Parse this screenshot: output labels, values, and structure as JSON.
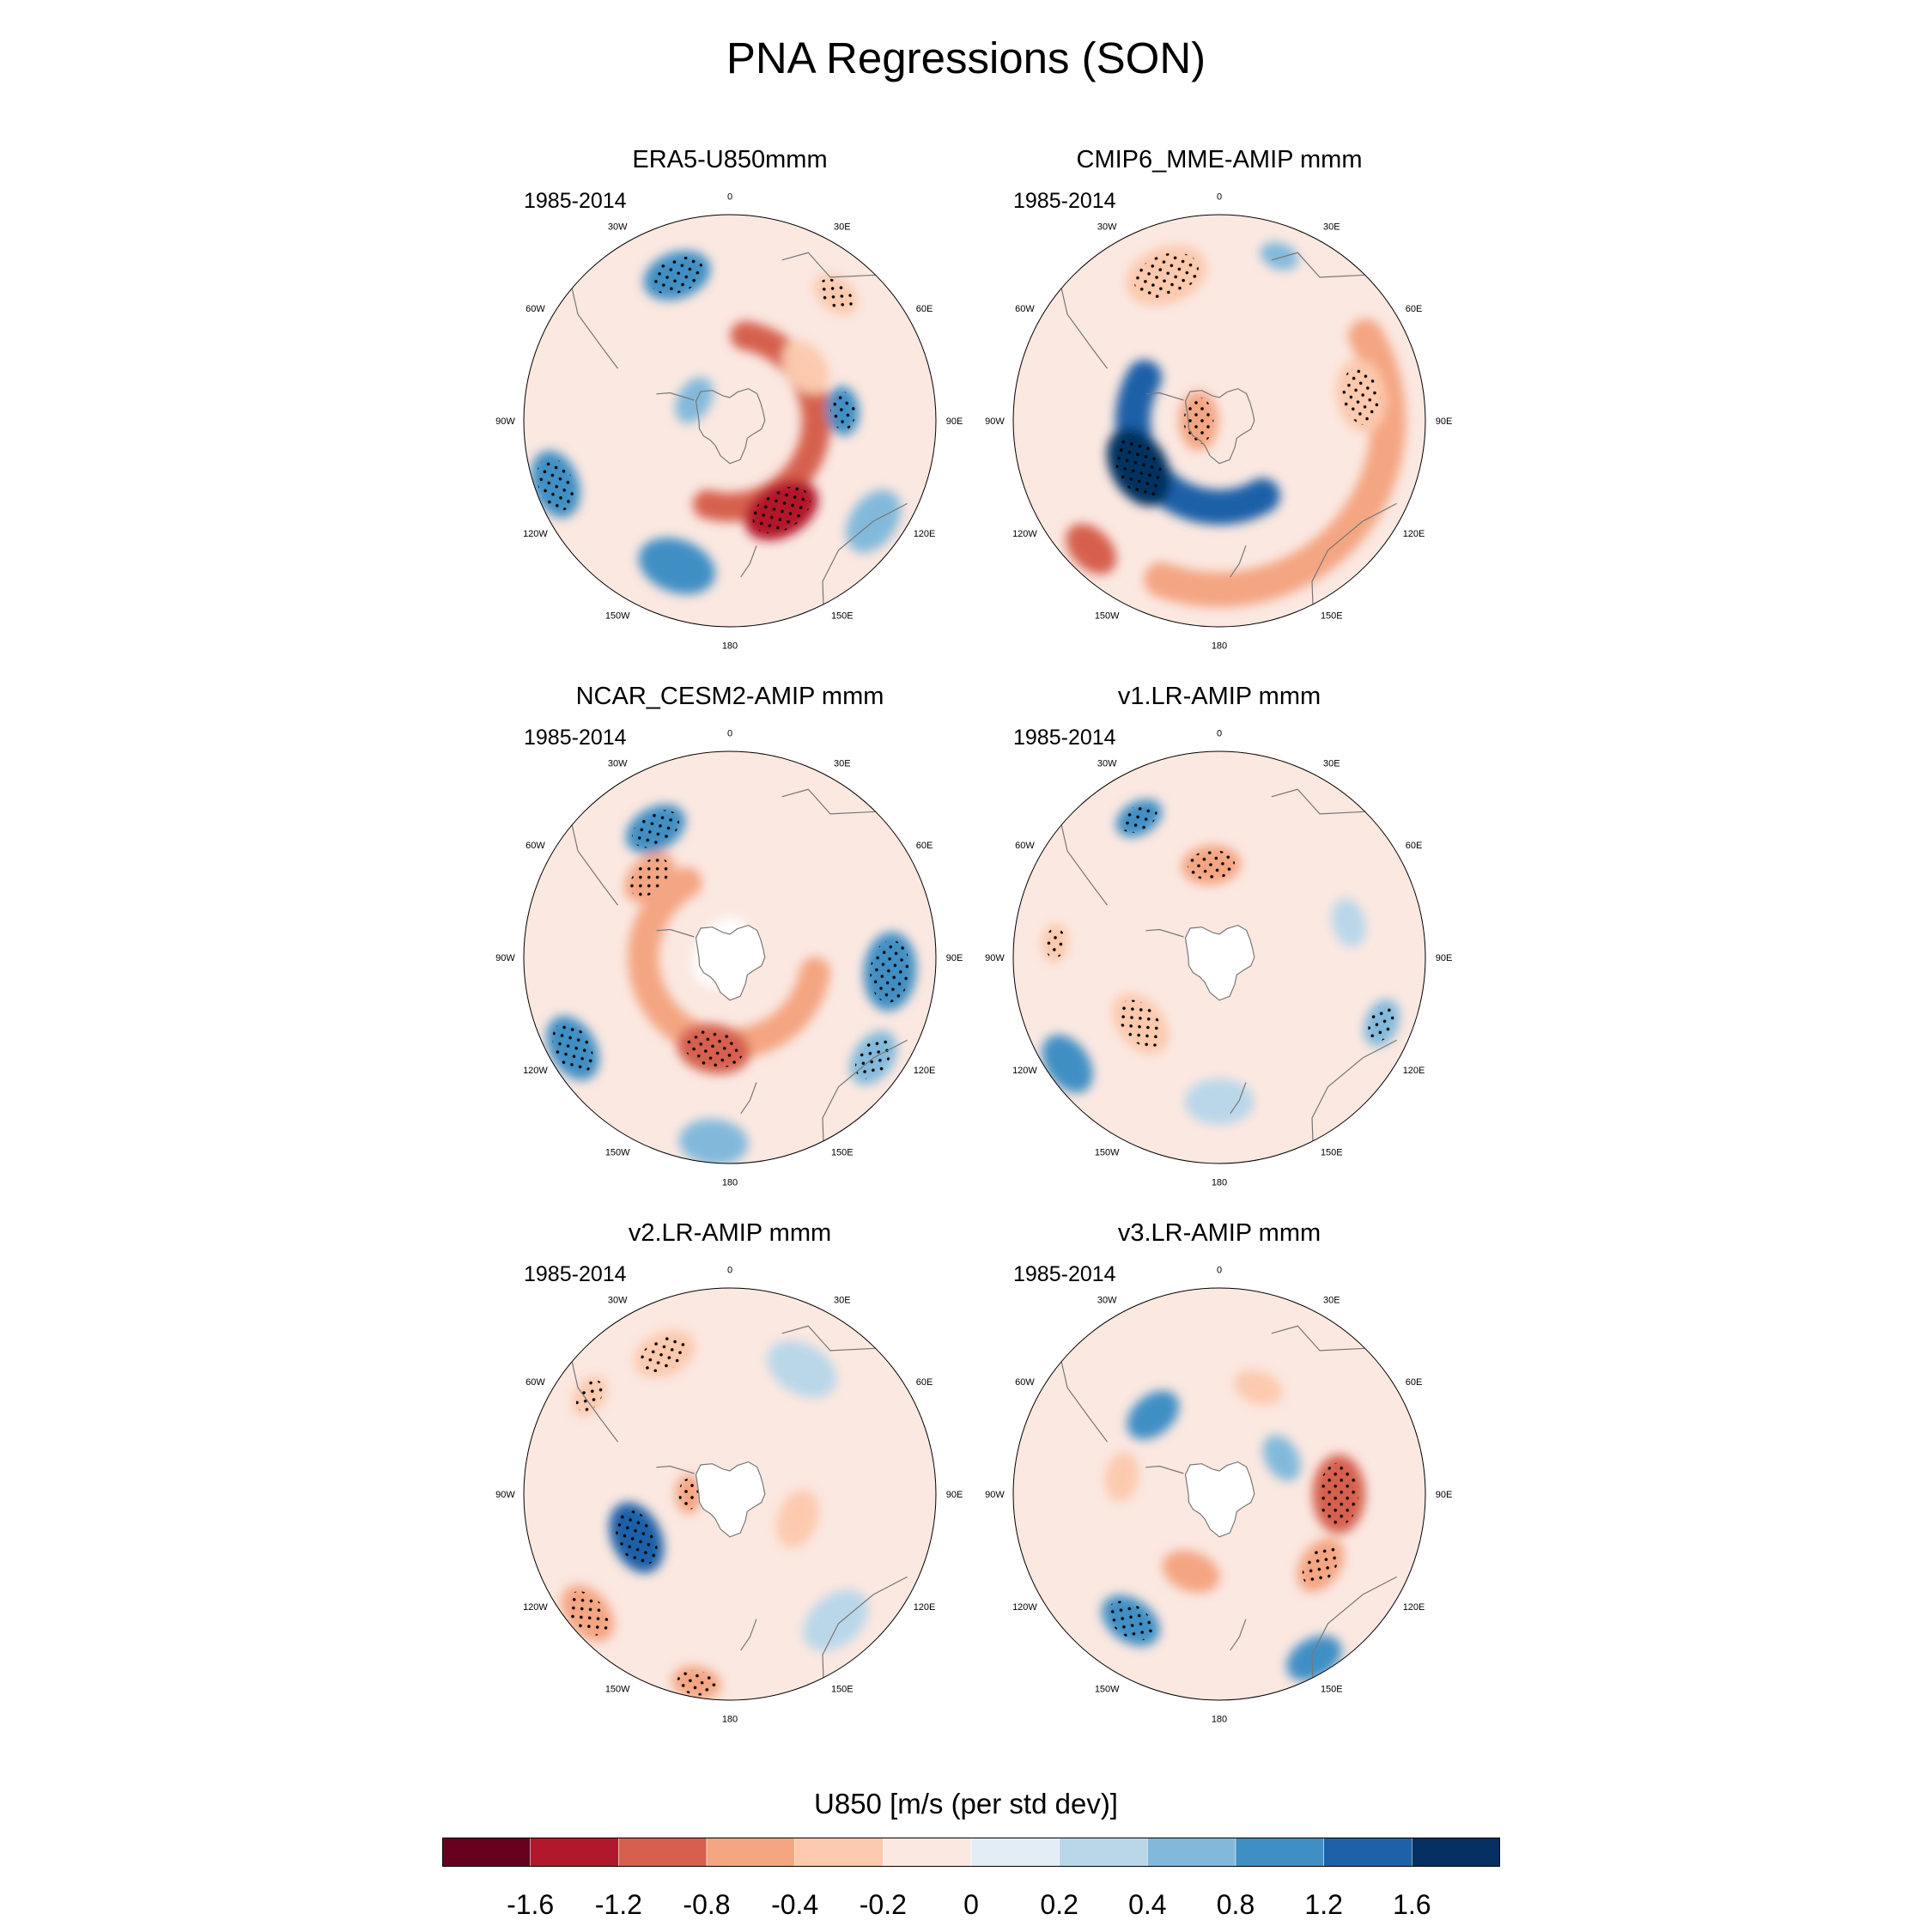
{
  "title": "PNA Regressions (SON)",
  "chart_data": {
    "type": "polar-contour-map",
    "projection": "south-polar-stereographic",
    "variable_label": "U850 [m/s (per std dev)]",
    "colorbar": {
      "levels": [
        "-1.6",
        "-1.2",
        "-0.8",
        "-0.4",
        "-0.2",
        "0",
        "0.2",
        "0.4",
        "0.8",
        "1.2",
        "1.6"
      ],
      "colors": [
        "#67001f",
        "#b2182b",
        "#d6604d",
        "#f4a582",
        "#fcc9ad",
        "#fbe8e1",
        "#e2edf5",
        "#b9d7e9",
        "#82b9db",
        "#3f8fc4",
        "#1f61a8",
        "#053061"
      ]
    },
    "longitude_labels": [
      "0",
      "30E",
      "60E",
      "90E",
      "120E",
      "150E",
      "180",
      "150W",
      "120W",
      "90W",
      "60W",
      "30W"
    ],
    "panels": [
      {
        "title": "ERA5-U850mmm",
        "period": "1985-2014",
        "features": [
          {
            "type": "ring",
            "lon_start": 10,
            "lon_end": 195,
            "radius": 0.42,
            "width": 0.14,
            "value": -1.2
          },
          {
            "type": "blob",
            "lon": 150,
            "radius": 0.5,
            "size": 0.16,
            "value": -1.6,
            "stipple": true
          },
          {
            "type": "blob",
            "lon": 55,
            "radius": 0.45,
            "size": 0.12,
            "value": -0.4
          },
          {
            "type": "blob",
            "lon": -20,
            "radius": 0.75,
            "size": 0.14,
            "value": 0.8,
            "stipple": true
          },
          {
            "type": "blob",
            "lon": 85,
            "radius": 0.55,
            "size": 0.1,
            "value": 0.8,
            "stipple": true
          },
          {
            "type": "blob",
            "lon": 200,
            "radius": 0.75,
            "size": 0.16,
            "value": 0.8
          },
          {
            "type": "blob",
            "lon": 250,
            "radius": 0.9,
            "size": 0.14,
            "value": 0.8,
            "stipple": true
          },
          {
            "type": "blob",
            "lon": 40,
            "radius": 0.8,
            "size": 0.1,
            "value": -0.4,
            "stipple": true
          },
          {
            "type": "blob",
            "lon": 125,
            "radius": 0.85,
            "size": 0.14,
            "value": 0.4
          },
          {
            "type": "blob",
            "lon": 300,
            "radius": 0.2,
            "size": 0.1,
            "value": 0.4
          }
        ]
      },
      {
        "title": "CMIP6_MME-AMIP  mmm",
        "period": "1985-2014",
        "features": [
          {
            "type": "ring",
            "lon_start": 150,
            "lon_end": 300,
            "radius": 0.42,
            "width": 0.17,
            "value": 1.2
          },
          {
            "type": "ring",
            "lon_start": 60,
            "lon_end": 200,
            "radius": 0.82,
            "width": 0.17,
            "value": -0.8
          },
          {
            "type": "blob",
            "lon": 240,
            "radius": 0.45,
            "size": 0.17,
            "value": 1.6,
            "stipple": true
          },
          {
            "type": "blob",
            "lon": -20,
            "radius": 0.75,
            "size": 0.17,
            "value": -0.4,
            "stipple": true
          },
          {
            "type": "blob",
            "lon": 225,
            "radius": 0.88,
            "size": 0.12,
            "value": -1.2
          },
          {
            "type": "blob",
            "lon": 80,
            "radius": 0.7,
            "size": 0.15,
            "value": -0.4,
            "stipple": true
          },
          {
            "type": "blob",
            "lon": 270,
            "radius": 0.1,
            "size": 0.12,
            "value": -0.8,
            "stipple": true
          },
          {
            "type": "blob",
            "lon": 20,
            "radius": 0.85,
            "size": 0.08,
            "value": 0.4
          }
        ]
      },
      {
        "title": "NCAR_CESM2-AMIP  mmm",
        "period": "1985-2014",
        "features": [
          {
            "type": "ring",
            "lon_start": 100,
            "lon_end": 330,
            "radius": 0.42,
            "width": 0.15,
            "value": -0.8
          },
          {
            "type": "blob",
            "lon": 190,
            "radius": 0.45,
            "size": 0.15,
            "value": -1.2,
            "stipple": true
          },
          {
            "type": "blob",
            "lon": 315,
            "radius": 0.55,
            "size": 0.12,
            "value": -0.8,
            "stipple": true
          },
          {
            "type": "blob",
            "lon": -30,
            "radius": 0.72,
            "size": 0.13,
            "value": 0.8,
            "stipple": true
          },
          {
            "type": "blob",
            "lon": 95,
            "radius": 0.78,
            "size": 0.16,
            "value": 0.8,
            "stipple": true
          },
          {
            "type": "blob",
            "lon": 125,
            "radius": 0.85,
            "size": 0.12,
            "value": 0.4,
            "stipple": true
          },
          {
            "type": "blob",
            "lon": 240,
            "radius": 0.88,
            "size": 0.14,
            "value": 0.8,
            "stipple": true
          },
          {
            "type": "blob",
            "lon": 185,
            "radius": 0.9,
            "size": 0.14,
            "value": 0.4
          },
          {
            "type": "blob",
            "lon": 300,
            "radius": 0.05,
            "size": 0.15,
            "value": 0.0,
            "land": true
          }
        ]
      },
      {
        "title": "v1.LR-AMIP  mmm",
        "period": "1985-2014",
        "features": [
          {
            "type": "blob",
            "lon": -5,
            "radius": 0.45,
            "size": 0.12,
            "value": -0.8,
            "stipple": true
          },
          {
            "type": "blob",
            "lon": 230,
            "radius": 0.5,
            "size": 0.14,
            "value": -0.4,
            "stipple": true
          },
          {
            "type": "blob",
            "lon": 275,
            "radius": 0.8,
            "size": 0.08,
            "value": -0.4,
            "stipple": true
          },
          {
            "type": "blob",
            "lon": 110,
            "radius": 0.4,
            "size": 0.12,
            "value": -0.2
          },
          {
            "type": "blob",
            "lon": -30,
            "radius": 0.78,
            "size": 0.1,
            "value": 0.8,
            "stipple": true
          },
          {
            "type": "blob",
            "lon": 112,
            "radius": 0.85,
            "size": 0.1,
            "value": 0.4,
            "stipple": true
          },
          {
            "type": "blob",
            "lon": 235,
            "radius": 0.9,
            "size": 0.13,
            "value": 0.8
          },
          {
            "type": "blob",
            "lon": 75,
            "radius": 0.65,
            "size": 0.1,
            "value": 0.2
          },
          {
            "type": "blob",
            "lon": 180,
            "radius": 0.7,
            "size": 0.14,
            "value": 0.2
          }
        ]
      },
      {
        "title": "v2.LR-AMIP  mmm",
        "period": "1985-2014",
        "features": [
          {
            "type": "blob",
            "lon": 245,
            "radius": 0.5,
            "size": 0.15,
            "value": 1.2,
            "stipple": true
          },
          {
            "type": "blob",
            "lon": 270,
            "radius": 0.2,
            "size": 0.08,
            "value": -0.8,
            "stipple": true
          },
          {
            "type": "blob",
            "lon": 230,
            "radius": 0.9,
            "size": 0.13,
            "value": -0.8,
            "stipple": true
          },
          {
            "type": "blob",
            "lon": 190,
            "radius": 0.93,
            "size": 0.1,
            "value": -0.8,
            "stipple": true
          },
          {
            "type": "blob",
            "lon": -25,
            "radius": 0.75,
            "size": 0.13,
            "value": -0.4,
            "stipple": true
          },
          {
            "type": "blob",
            "lon": 110,
            "radius": 0.35,
            "size": 0.12,
            "value": -0.4
          },
          {
            "type": "blob",
            "lon": 305,
            "radius": 0.83,
            "size": 0.09,
            "value": -0.4,
            "stipple": true
          },
          {
            "type": "blob",
            "lon": 30,
            "radius": 0.7,
            "size": 0.15,
            "value": 0.2
          },
          {
            "type": "blob",
            "lon": 140,
            "radius": 0.8,
            "size": 0.15,
            "value": 0.2
          }
        ]
      },
      {
        "title": "v3.LR-AMIP  mmm",
        "period": "1985-2014",
        "features": [
          {
            "type": "blob",
            "lon": 90,
            "radius": 0.58,
            "size": 0.16,
            "value": -1.2,
            "stipple": true
          },
          {
            "type": "blob",
            "lon": 125,
            "radius": 0.6,
            "size": 0.12,
            "value": -0.8,
            "stipple": true
          },
          {
            "type": "blob",
            "lon": 215,
            "radius": 0.75,
            "size": 0.13,
            "value": 0.8,
            "stipple": true
          },
          {
            "type": "blob",
            "lon": -40,
            "radius": 0.5,
            "size": 0.12,
            "value": 0.8
          },
          {
            "type": "blob",
            "lon": 150,
            "radius": 0.92,
            "size": 0.12,
            "value": 0.8
          },
          {
            "type": "blob",
            "lon": 200,
            "radius": 0.4,
            "size": 0.12,
            "value": -0.8
          },
          {
            "type": "blob",
            "lon": 280,
            "radius": 0.48,
            "size": 0.1,
            "value": -0.4
          },
          {
            "type": "blob",
            "lon": 60,
            "radius": 0.35,
            "size": 0.1,
            "value": 0.4
          },
          {
            "type": "blob",
            "lon": 20,
            "radius": 0.55,
            "size": 0.1,
            "value": -0.4
          }
        ]
      }
    ]
  }
}
